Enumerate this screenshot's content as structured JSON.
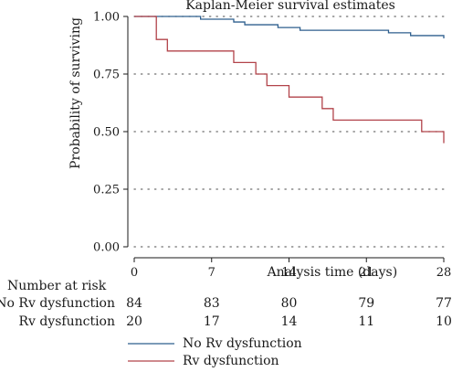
{
  "chart_data": {
    "type": "line",
    "title": "Kaplan-Meier survival estimates",
    "xlabel": "Analysis time (days)",
    "ylabel": "Probability of surviving",
    "xlim": [
      0,
      28
    ],
    "ylim": [
      0,
      1
    ],
    "x_ticks": [
      "0",
      "7",
      "14",
      "21",
      "28"
    ],
    "x_tick_values": [
      0,
      7,
      14,
      21,
      28
    ],
    "y_ticks": [
      "0.00",
      "0.25",
      "0.50",
      "0.75",
      "1.00"
    ],
    "y_tick_values": [
      0,
      0.25,
      0.5,
      0.75,
      1.0
    ],
    "grid": "horizontal dotted",
    "legend_position": "bottom-left",
    "series": [
      {
        "name": "No Rv dysfunction",
        "color": "#2e5f8e",
        "step": true,
        "x": [
          0,
          6,
          9,
          10,
          13,
          15,
          23,
          25,
          28
        ],
        "y": [
          1.0,
          0.988,
          0.976,
          0.964,
          0.952,
          0.94,
          0.929,
          0.917,
          0.905
        ]
      },
      {
        "name": "Rv dysfunction",
        "color": "#b2434a",
        "step": true,
        "x": [
          0,
          2,
          3,
          9,
          11,
          12,
          14,
          17,
          18,
          26,
          28
        ],
        "y": [
          1.0,
          0.9,
          0.85,
          0.8,
          0.75,
          0.7,
          0.65,
          0.6,
          0.55,
          0.5,
          0.45
        ]
      }
    ]
  },
  "risk_table": {
    "header": "Number at risk",
    "rows": [
      {
        "label": "No Rv dysfunction",
        "values": [
          "84",
          "83",
          "80",
          "79",
          "77"
        ]
      },
      {
        "label": "Rv dysfunction",
        "values": [
          "20",
          "17",
          "14",
          "11",
          "10"
        ]
      }
    ]
  },
  "legend": [
    {
      "label": "No Rv dysfunction",
      "color": "#2e5f8e"
    },
    {
      "label": "Rv dysfunction",
      "color": "#b2434a"
    }
  ]
}
